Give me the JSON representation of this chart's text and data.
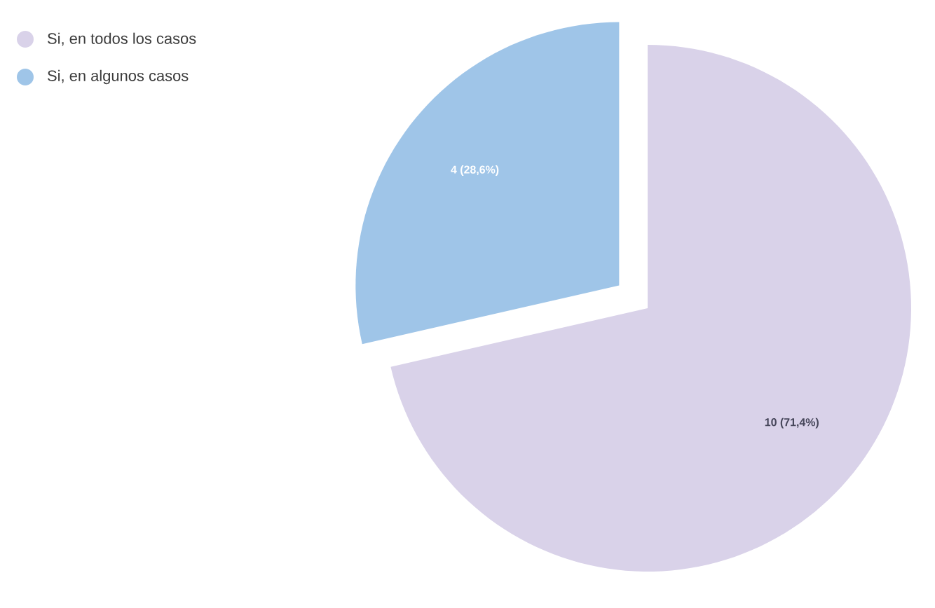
{
  "chart_data": {
    "type": "pie",
    "categories": [
      "Si, en todos los casos",
      "Si, en algunos casos"
    ],
    "values": [
      10,
      4
    ],
    "colors": [
      "#d9d2e9",
      "#9fc5e8"
    ],
    "value_labels": [
      "10 (71,4%)",
      "4 (28,6%)"
    ],
    "legend": "top left"
  }
}
